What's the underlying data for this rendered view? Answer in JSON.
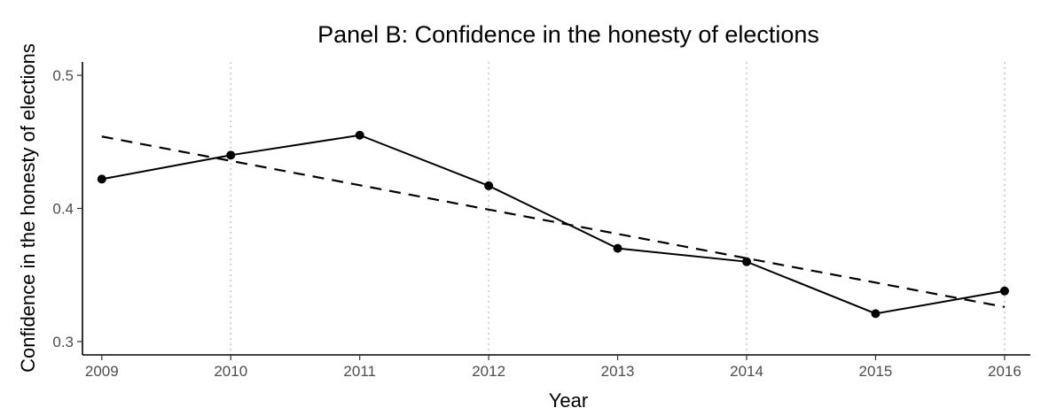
{
  "chart_data": {
    "type": "line",
    "title": "Panel B: Confidence in the honesty of elections",
    "xlabel": "Year",
    "ylabel": "Confidence in the honesty of elections",
    "x": [
      2009,
      2010,
      2011,
      2012,
      2013,
      2014,
      2015,
      2016
    ],
    "x_tick_labels": [
      "2009",
      "2010",
      "2011",
      "2012",
      "2013",
      "2014",
      "2015",
      "2016"
    ],
    "xlim": [
      2008.85,
      2016.2
    ],
    "ylim": [
      0.29,
      0.51
    ],
    "y_ticks": [
      0.3,
      0.4,
      0.5
    ],
    "y_tick_labels": [
      "0.3",
      "0.4",
      "0.5"
    ],
    "series": [
      {
        "style": "solid-with-points",
        "color": "#000000",
        "values": [
          0.422,
          0.44,
          0.455,
          0.417,
          0.37,
          0.36,
          0.321,
          0.338
        ]
      }
    ],
    "trend_line": {
      "style": "dashed",
      "color": "#000000",
      "x": [
        2009,
        2016
      ],
      "y": [
        0.454,
        0.326
      ]
    },
    "vertical_lines": {
      "style": "dotted",
      "color": "#c8c8c8",
      "x": [
        2010,
        2012,
        2014,
        2016
      ]
    },
    "grid": false,
    "legend": "none"
  }
}
